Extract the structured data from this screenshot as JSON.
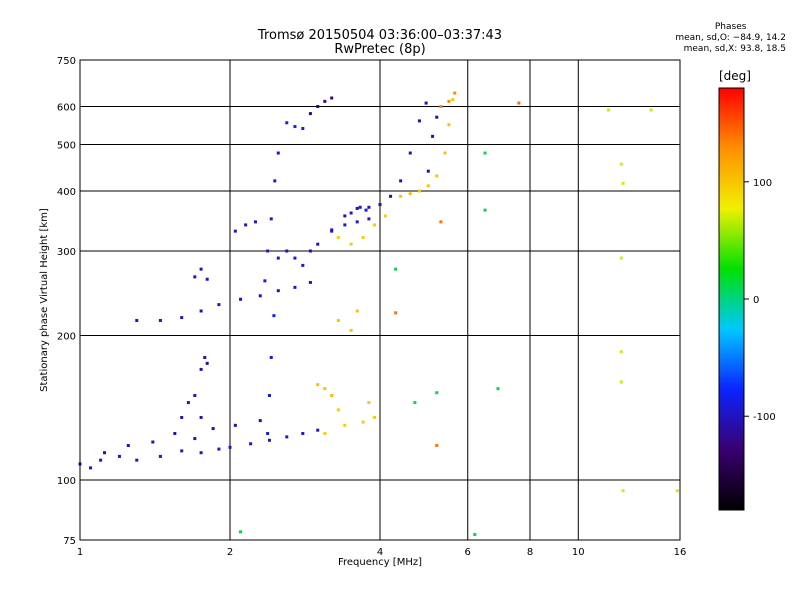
{
  "chart_data": {
    "type": "scatter",
    "title": "Tromsø 20150504 03:36:00–03:37:43",
    "subtitle": "RwPretec (8p)",
    "xlabel": "Frequency [MHz]",
    "ylabel": "Stationary phase Virtual Height [km]",
    "x_scale": "log",
    "y_scale": "log",
    "xlim": [
      1,
      16
    ],
    "ylim": [
      75,
      750
    ],
    "x_ticks": [
      1,
      2,
      4,
      6,
      8,
      10,
      16
    ],
    "y_ticks": [
      75,
      100,
      200,
      300,
      400,
      500,
      600,
      750
    ],
    "grid": true,
    "stats": {
      "header": "Phases",
      "line_o": "mean, sd,O: −84.9, 14.2",
      "line_x": "mean, sd,X:  93.8, 18.5"
    },
    "colorbar": {
      "label": "[deg]",
      "ticks": [
        100,
        0,
        -100
      ],
      "range": [
        -180,
        180
      ],
      "colors": [
        "#000000",
        "#3a0070",
        "#0a24ff",
        "#00c8ff",
        "#00e000",
        "#f0f000",
        "#ff9000",
        "#ff0000"
      ]
    },
    "series": [
      {
        "points": [
          [
            1.0,
            108
          ],
          [
            1.05,
            106
          ],
          [
            1.1,
            110
          ],
          [
            1.2,
            112
          ],
          [
            1.3,
            110
          ],
          [
            1.45,
            112
          ],
          [
            1.6,
            115
          ],
          [
            1.75,
            114
          ],
          [
            1.9,
            116
          ],
          [
            2.0,
            117
          ],
          [
            2.2,
            119
          ],
          [
            2.4,
            121
          ],
          [
            2.6,
            123
          ],
          [
            2.8,
            125
          ],
          [
            3.0,
            127
          ]
        ],
        "phase": -95
      },
      {
        "points": [
          [
            1.12,
            114
          ],
          [
            1.25,
            118
          ],
          [
            1.4,
            120
          ],
          [
            1.55,
            125
          ],
          [
            1.7,
            122
          ],
          [
            1.85,
            128
          ],
          [
            2.05,
            130
          ],
          [
            2.3,
            133
          ]
        ],
        "phase": -110
      },
      {
        "points": [
          [
            1.6,
            135
          ],
          [
            1.65,
            145
          ],
          [
            1.7,
            150
          ],
          [
            1.75,
            135
          ]
        ],
        "phase": -105
      },
      {
        "points": [
          [
            1.75,
            170
          ],
          [
            1.78,
            180
          ],
          [
            1.8,
            175
          ]
        ],
        "phase": -110
      },
      {
        "points": [
          [
            1.3,
            215
          ],
          [
            1.45,
            215
          ],
          [
            1.6,
            218
          ],
          [
            1.75,
            225
          ],
          [
            1.9,
            232
          ],
          [
            2.1,
            238
          ],
          [
            2.3,
            242
          ],
          [
            2.5,
            248
          ],
          [
            2.7,
            252
          ],
          [
            2.9,
            258
          ]
        ],
        "phase": -100
      },
      {
        "points": [
          [
            1.7,
            265
          ],
          [
            1.75,
            275
          ],
          [
            1.8,
            262
          ]
        ],
        "phase": -100
      },
      {
        "points": [
          [
            2.35,
            260
          ],
          [
            2.38,
            300
          ],
          [
            2.42,
            350
          ],
          [
            2.46,
            420
          ],
          [
            2.5,
            480
          ],
          [
            2.45,
            220
          ],
          [
            2.42,
            180
          ],
          [
            2.4,
            150
          ],
          [
            2.38,
            125
          ]
        ],
        "phase": -90
      },
      {
        "points": [
          [
            2.5,
            290
          ],
          [
            2.6,
            300
          ],
          [
            2.7,
            290
          ],
          [
            2.8,
            280
          ]
        ],
        "phase": -95
      },
      {
        "points": [
          [
            2.05,
            330
          ],
          [
            2.15,
            340
          ],
          [
            2.25,
            345
          ]
        ],
        "phase": -95
      },
      {
        "points": [
          [
            2.6,
            555
          ],
          [
            2.7,
            545
          ],
          [
            2.8,
            540
          ]
        ],
        "phase": -85
      },
      {
        "points": [
          [
            2.9,
            580
          ],
          [
            3.0,
            600
          ],
          [
            3.1,
            615
          ],
          [
            3.2,
            625
          ]
        ],
        "phase": -120
      },
      {
        "points": [
          [
            2.9,
            300
          ],
          [
            3.0,
            310
          ],
          [
            3.2,
            330
          ],
          [
            3.4,
            355
          ],
          [
            3.6,
            368
          ],
          [
            3.8,
            370
          ],
          [
            4.0,
            375
          ],
          [
            4.2,
            390
          ],
          [
            4.4,
            420
          ],
          [
            4.6,
            480
          ],
          [
            4.8,
            560
          ],
          [
            4.95,
            610
          ]
        ],
        "phase": -105
      },
      {
        "points": [
          [
            3.2,
            332
          ],
          [
            3.4,
            340
          ],
          [
            3.6,
            345
          ],
          [
            3.8,
            350
          ]
        ],
        "phase": -95
      },
      {
        "points": [
          [
            3.5,
            360
          ],
          [
            3.65,
            370
          ],
          [
            3.75,
            365
          ]
        ],
        "phase": -90
      },
      {
        "points": [
          [
            5.0,
            440
          ],
          [
            5.1,
            520
          ],
          [
            5.2,
            570
          ]
        ],
        "phase": -110
      },
      {
        "points": [
          [
            3.3,
            320
          ],
          [
            3.5,
            310
          ],
          [
            3.7,
            320
          ],
          [
            3.9,
            340
          ],
          [
            4.1,
            355
          ]
        ],
        "phase": 95
      },
      {
        "points": [
          [
            4.4,
            390
          ],
          [
            4.6,
            395
          ],
          [
            4.8,
            400
          ],
          [
            5.0,
            410
          ],
          [
            5.2,
            430
          ],
          [
            5.4,
            480
          ],
          [
            5.5,
            550
          ],
          [
            5.6,
            620
          ]
        ],
        "phase": 100
      },
      {
        "points": [
          [
            5.3,
            600
          ],
          [
            5.5,
            615
          ],
          [
            5.65,
            640
          ]
        ],
        "phase": 130
      },
      {
        "points": [
          [
            3.1,
            125
          ],
          [
            3.4,
            130
          ],
          [
            3.7,
            132
          ],
          [
            3.9,
            135
          ],
          [
            3.8,
            145
          ],
          [
            3.3,
            140
          ],
          [
            3.2,
            150
          ]
        ],
        "phase": 95
      },
      {
        "points": [
          [
            3.3,
            215
          ],
          [
            3.5,
            205
          ],
          [
            3.6,
            225
          ]
        ],
        "phase": 100
      },
      {
        "points": [
          [
            3.0,
            158
          ],
          [
            3.1,
            155
          ],
          [
            3.2,
            150
          ]
        ],
        "phase": 100
      },
      {
        "points": [
          [
            2.1,
            78
          ],
          [
            6.2,
            77
          ],
          [
            6.5,
            365
          ],
          [
            6.5,
            480
          ],
          [
            6.9,
            155
          ],
          [
            5.2,
            152
          ],
          [
            4.7,
            145
          ],
          [
            4.3,
            275
          ]
        ],
        "phase": 10
      },
      {
        "points": [
          [
            11.5,
            590
          ],
          [
            12.2,
            160
          ],
          [
            12.2,
            185
          ],
          [
            12.2,
            290
          ],
          [
            12.2,
            455
          ],
          [
            12.3,
            415
          ],
          [
            12.3,
            95
          ],
          [
            14.0,
            590
          ],
          [
            15.8,
            95
          ]
        ],
        "phase": 70
      },
      {
        "points": [
          [
            7.6,
            610
          ],
          [
            5.2,
            118
          ],
          [
            4.3,
            223
          ],
          [
            5.3,
            345
          ]
        ],
        "phase": 140
      }
    ]
  }
}
